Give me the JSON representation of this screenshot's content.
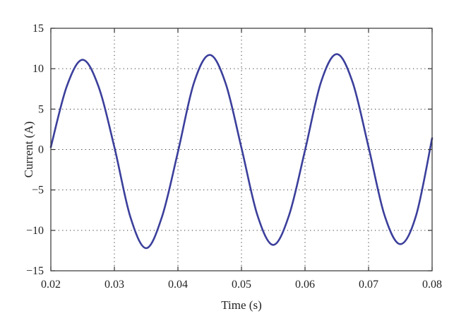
{
  "chart_data": {
    "type": "line",
    "title": "",
    "xlabel": "Time (s)",
    "ylabel": "Current (A)",
    "xlim": [
      0.02,
      0.08
    ],
    "ylim": [
      -15,
      15
    ],
    "xticks": [
      0.02,
      0.03,
      0.04,
      0.05,
      0.06,
      0.07,
      0.08
    ],
    "xtick_labels": [
      "0.02",
      "0.03",
      "0.04",
      "0.05",
      "0.06",
      "0.07",
      "0.08"
    ],
    "yticks": [
      -15,
      -10,
      -5,
      0,
      5,
      10,
      15
    ],
    "ytick_labels": [
      "−15",
      "−10",
      "−5",
      "0",
      "5",
      "10",
      "15"
    ],
    "grid": true,
    "legend": false,
    "series": [
      {
        "color": "#3b3f9b",
        "x": [
          0.02,
          0.0225,
          0.025,
          0.0275,
          0.03,
          0.0325,
          0.035,
          0.0375,
          0.04,
          0.0425,
          0.045,
          0.0475,
          0.05,
          0.0525,
          0.055,
          0.0575,
          0.06,
          0.0625,
          0.065,
          0.0675,
          0.07,
          0.0725,
          0.075,
          0.0775,
          0.08
        ],
        "y": [
          0.3,
          7.8,
          11.1,
          7.8,
          0.3,
          -8.3,
          -12.2,
          -8.3,
          -0.3,
          8.2,
          11.7,
          8.2,
          0.2,
          -8.1,
          -11.8,
          -8.1,
          -0.1,
          8.3,
          11.8,
          8.3,
          0.3,
          -8.1,
          -11.7,
          -8.1,
          1.4
        ]
      }
    ]
  }
}
